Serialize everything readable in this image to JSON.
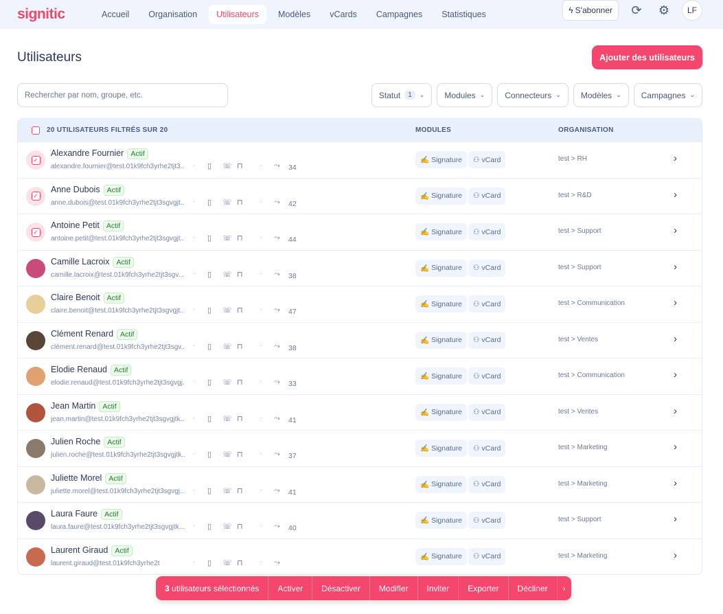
{
  "brand": "signitic",
  "nav": [
    "Accueil",
    "Organisation",
    "Utilisateurs",
    "Modèles",
    "vCards",
    "Campagnes",
    "Statistiques"
  ],
  "nav_active": 2,
  "header": {
    "subscribe": "S'abonner",
    "avatar_initials": "LF"
  },
  "page": {
    "title": "Utilisateurs",
    "add_button": "Ajouter des utilisateurs"
  },
  "search": {
    "placeholder": "Rechercher par nom, groupe, etc.",
    "value": ""
  },
  "filters": [
    {
      "label": "Statut",
      "count": "1"
    },
    {
      "label": "Modules"
    },
    {
      "label": "Connecteurs"
    },
    {
      "label": "Modèles"
    },
    {
      "label": "Campagnes"
    }
  ],
  "table": {
    "header_count": "20 UTILISATEURS FILTRÉS SUR 20",
    "col_modules": "MODULES",
    "col_org": "ORGANISATION",
    "status_label": "Actif",
    "module_signature": "Signature",
    "module_vcard": "vCard",
    "rows": [
      {
        "name": "Alexandre Fournier",
        "email": "alexandre.fournier@test.01k9fch3yrhe2tjt3...",
        "count": "34",
        "org": "test > RH",
        "selected": true
      },
      {
        "name": "Anne Dubois",
        "email": "anne.dubois@test.01k9fch3yrhe2tjt3sgvgjt...",
        "count": "42",
        "org": "test > R&D",
        "selected": true
      },
      {
        "name": "Antoine Petit",
        "email": "antoine.petit@test.01k9fch3yrhe2tjt3sgvgjt...",
        "count": "44",
        "org": "test > Support",
        "selected": true
      },
      {
        "name": "Camille Lacroix",
        "email": "camille.lacroix@test.01k9fch3yrhe2tjt3sgv...",
        "count": "38",
        "org": "test > Support",
        "color": "#c94b7a"
      },
      {
        "name": "Claire Benoit",
        "email": "claire.benoit@test.01k9fch3yrhe2tjt3sgvgjt...",
        "count": "47",
        "org": "test > Communication",
        "color": "#e8cf9a"
      },
      {
        "name": "Clément Renard",
        "email": "clément.renard@test.01k9fch3yrhe2tjt3sgv...",
        "count": "38",
        "org": "test > Ventes",
        "color": "#5a4636"
      },
      {
        "name": "Elodie Renaud",
        "email": "elodie.renaud@test.01k9fch3yrhe2tjt3sgvgj...",
        "count": "33",
        "org": "test > Communication",
        "color": "#e0a070"
      },
      {
        "name": "Jean Martin",
        "email": "jean.martin@test.01k9fch3yrhe2tjt3sgvgjtk...",
        "count": "41",
        "org": "test > Ventes",
        "color": "#b0543e"
      },
      {
        "name": "Julien Roche",
        "email": "julien.roche@test.01k9fch3yrhe2tjt3sgvgjtk...",
        "count": "37",
        "org": "test > Marketing",
        "color": "#8a7a6a"
      },
      {
        "name": "Juliette Morel",
        "email": "juliette.morel@test.01k9fch3yrhe2tjt3sgvgj...",
        "count": "41",
        "org": "test > Marketing",
        "color": "#c8b8a0"
      },
      {
        "name": "Laura Faure",
        "email": "laura.faure@test.01k9fch3yrhe2tjt3sgvgjtk...",
        "count": "40",
        "org": "test > Support",
        "color": "#5a4a6a"
      },
      {
        "name": "Laurent Giraud",
        "email": "laurent.giraud@test.01k9fch3yrhe2t",
        "count": "",
        "org": "test > Marketing",
        "color": "#c86a50"
      }
    ]
  },
  "bulk": {
    "count": "3",
    "label": "utilisateurs sélectionnés",
    "actions": [
      "Activer",
      "Désactiver",
      "Modifier",
      "Inviter",
      "Exporter",
      "Décliner"
    ]
  },
  "colors": {
    "accent": "#f5476e",
    "header_bg": "#e8f0fc"
  }
}
